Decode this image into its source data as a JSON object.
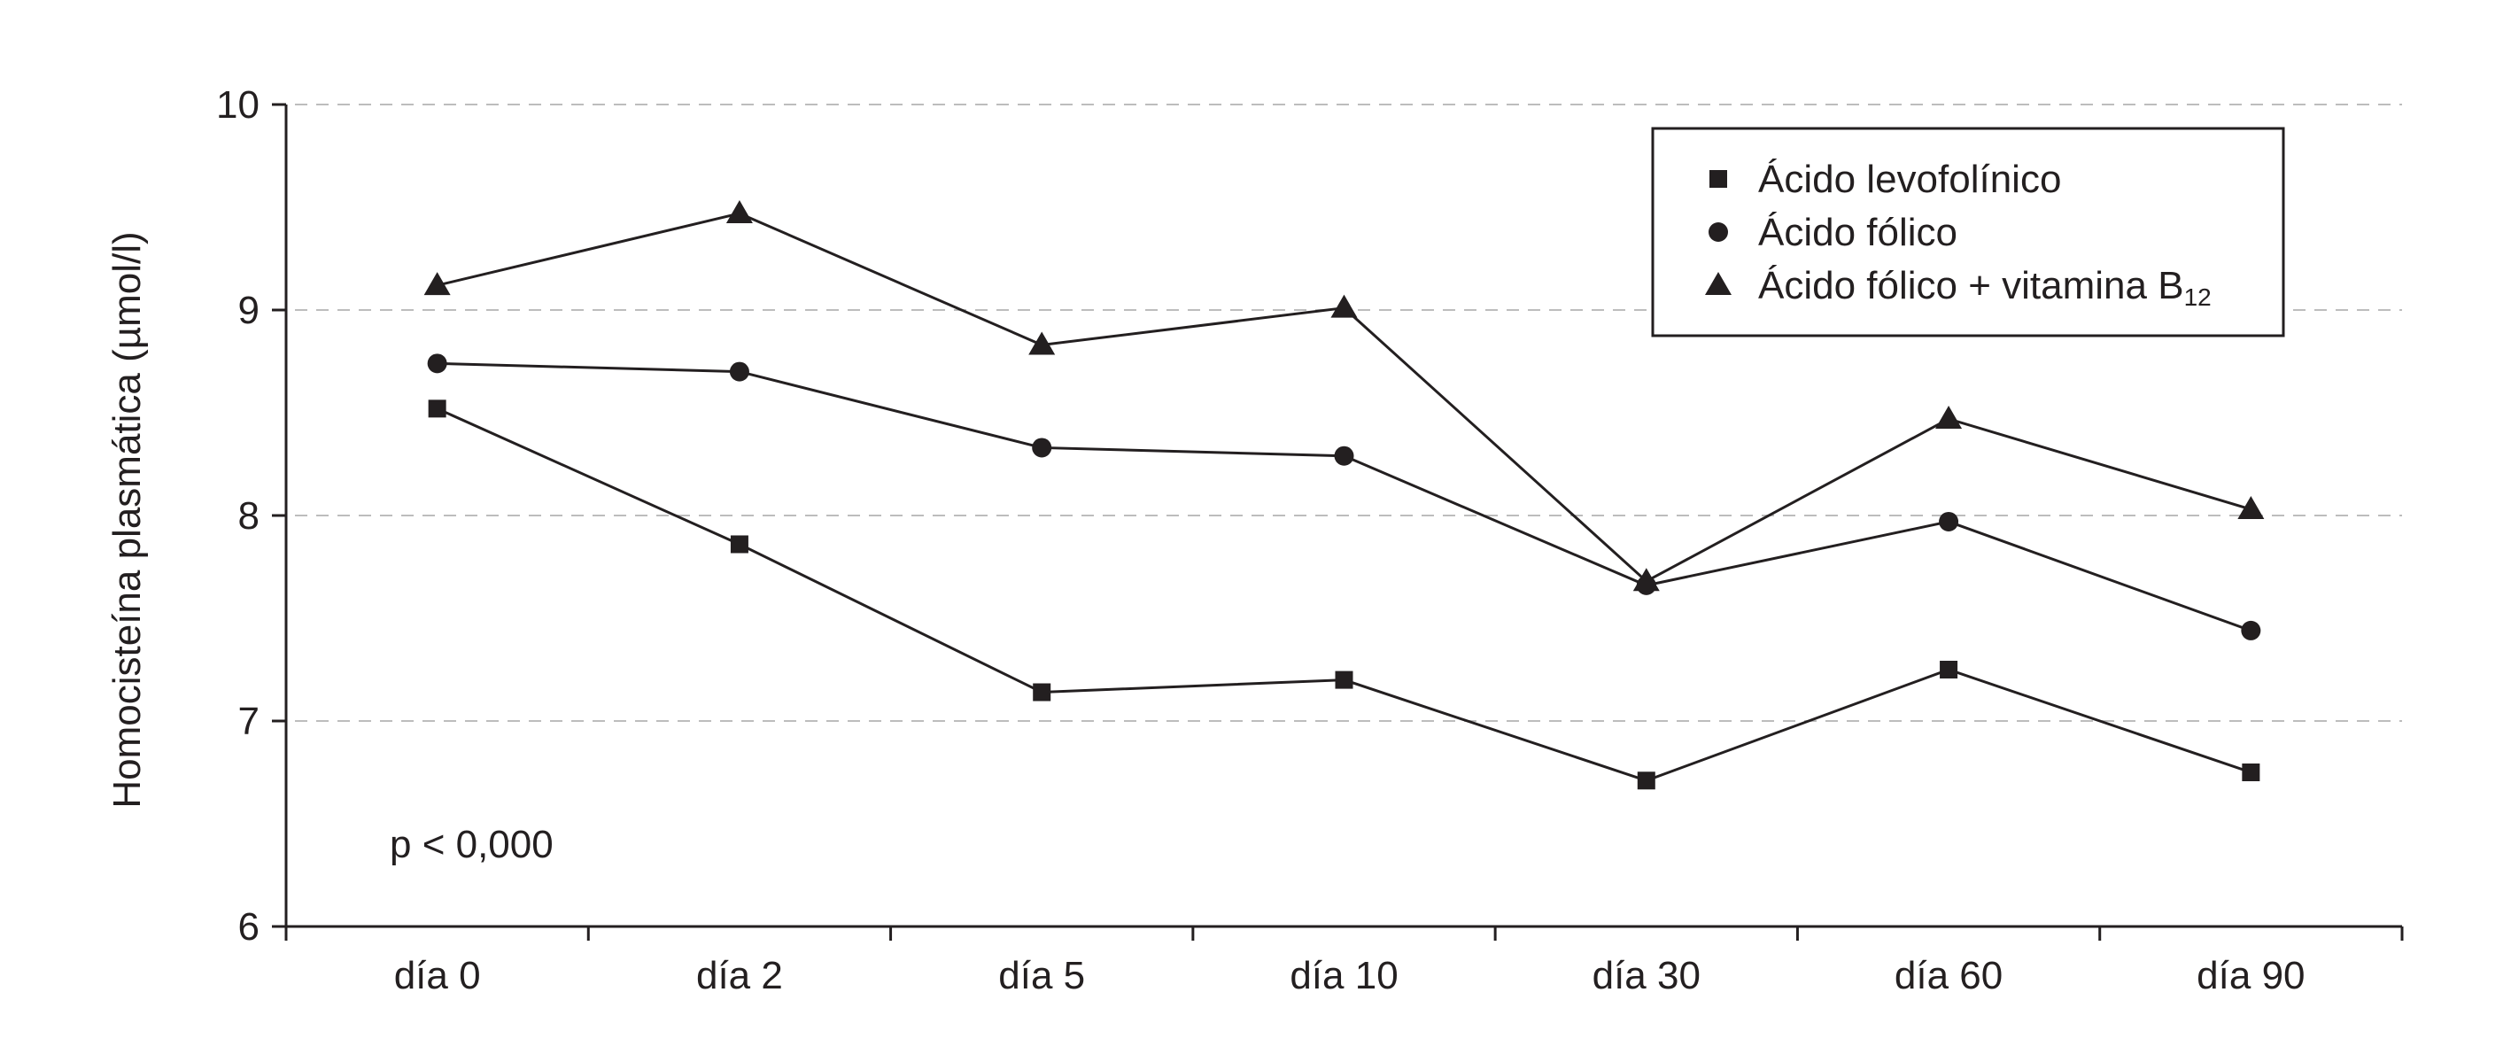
{
  "chart_data": {
    "type": "line",
    "ylabel": "Homocisteína plasmática (µmol/l)",
    "xlabel": "",
    "categories": [
      "día 0",
      "día 2",
      "día 5",
      "día 10",
      "día 30",
      "día 60",
      "día 90"
    ],
    "ylim": [
      6,
      10
    ],
    "yticks": [
      "6",
      "7",
      "8",
      "9",
      "10"
    ],
    "grid": true,
    "legend_position": "top-right",
    "annotation": "p < 0,000",
    "series": [
      {
        "name": "Ácido levofolínico",
        "marker": "square",
        "values": [
          8.52,
          7.86,
          7.14,
          7.2,
          6.71,
          7.25,
          6.75
        ]
      },
      {
        "name": "Ácido fólico",
        "marker": "circle",
        "values": [
          8.74,
          8.7,
          8.33,
          8.29,
          7.66,
          7.97,
          7.44
        ]
      },
      {
        "name": "Ácido fólico + vitamina B",
        "name_subscript": "12",
        "marker": "triangle",
        "values": [
          9.12,
          9.47,
          8.83,
          9.01,
          7.68,
          8.47,
          8.03
        ]
      }
    ],
    "colors": {
      "ink": "#231f20",
      "grid": "#bdbdbd"
    }
  }
}
